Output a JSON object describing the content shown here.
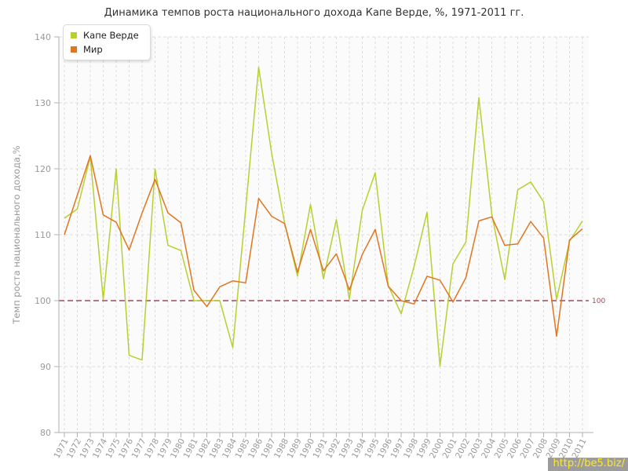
{
  "page": {
    "title": "Динамика темпов роста национального дохода Капе Верде, %, 1971-2011 гг."
  },
  "watermark": {
    "text": "http://be5.biz/"
  },
  "colors": {
    "grid": "#dcdcdc",
    "axis": "#b0b0b0",
    "tick_labels": "#999999",
    "plot_background": "#fbfbfb",
    "reference": "#9d4b5a"
  },
  "chart_data": {
    "type": "line",
    "title": "Динамика темпов роста национального дохода Капе Верде, %, 1971-2011 гг.",
    "xlabel": "",
    "ylabel": "Темп роста национального дохода,%",
    "ylim": [
      80,
      140
    ],
    "yticks": [
      80,
      90,
      100,
      110,
      120,
      130,
      140
    ],
    "grid": true,
    "legend_position": "top-left",
    "reference_line": {
      "value": 100,
      "label": "100",
      "color": "#9d4b5a"
    },
    "x": [
      1971,
      1972,
      1973,
      1974,
      1975,
      1976,
      1977,
      1978,
      1979,
      1980,
      1981,
      1982,
      1983,
      1984,
      1985,
      1986,
      1987,
      1988,
      1989,
      1990,
      1991,
      1992,
      1993,
      1994,
      1995,
      1996,
      1997,
      1998,
      1999,
      2000,
      2001,
      2002,
      2003,
      2004,
      2005,
      2006,
      2007,
      2008,
      2009,
      2010,
      2011
    ],
    "series": [
      {
        "name": "Капе Верде",
        "color": "#b9cf2f",
        "values": [
          112.5,
          113.9,
          121.8,
          100.2,
          120.0,
          91.7,
          91.0,
          120.0,
          108.4,
          107.6,
          100.0,
          100.0,
          100.0,
          92.9,
          114.0,
          135.4,
          122.4,
          111.8,
          103.7,
          114.6,
          103.3,
          112.3,
          100.2,
          113.7,
          119.4,
          102.3,
          98.0,
          105.2,
          113.4,
          90.1,
          105.6,
          108.9,
          130.8,
          113.1,
          103.2,
          116.8,
          118.0,
          115.0,
          100.2,
          109.0,
          112.1
        ]
      },
      {
        "name": "Мир",
        "color": "#e2751f",
        "values": [
          110.0,
          116.0,
          122.0,
          113.0,
          111.9,
          107.7,
          113.3,
          118.4,
          113.3,
          111.8,
          101.6,
          99.1,
          102.1,
          103.0,
          102.7,
          115.5,
          112.8,
          111.7,
          104.3,
          110.8,
          104.5,
          107.1,
          101.6,
          107.0,
          110.8,
          102.2,
          100.0,
          99.5,
          103.7,
          103.1,
          99.8,
          103.5,
          112.1,
          112.7,
          108.4,
          108.6,
          112.0,
          109.5,
          94.6,
          109.2,
          110.9
        ]
      }
    ]
  }
}
